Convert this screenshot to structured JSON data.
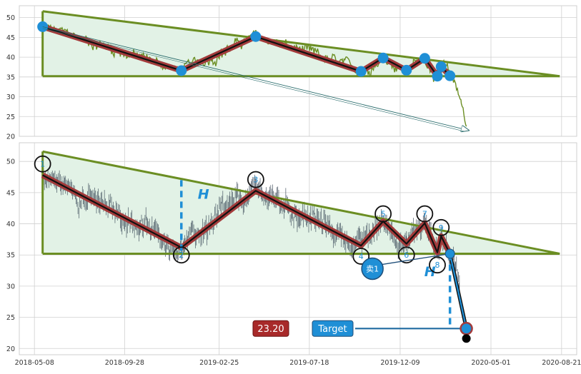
{
  "chart_data": [
    {
      "panel": "top",
      "type": "line",
      "title": "",
      "xlabel": "",
      "ylabel": "",
      "ylim": [
        20,
        53
      ],
      "yticks": [
        20,
        25,
        30,
        35,
        40,
        45,
        50
      ],
      "xlim": [
        "2018-04-14",
        "2020-09-14"
      ],
      "grid": true,
      "series": [
        {
          "color": "#6b8e23",
          "style": "price-line"
        },
        {
          "color": "#a33b3b",
          "style": "zigzag-thick",
          "points": [
            [
              "2018-05-21",
              47.7
            ],
            [
              "2018-12-27",
              36.6
            ],
            [
              "2019-04-24",
              45.2
            ],
            [
              "2019-10-08",
              36.4
            ],
            [
              "2019-11-12",
              39.8
            ],
            [
              "2019-12-19",
              36.7
            ],
            [
              "2020-01-17",
              39.7
            ],
            [
              "2020-02-06",
              35.2
            ],
            [
              "2020-02-12",
              37.6
            ],
            [
              "2020-02-26",
              35.3
            ]
          ]
        }
      ],
      "pattern": {
        "upper_line": [
          [
            "2018-05-21",
            51.6
          ],
          [
            "2020-08-18",
            35.2
          ]
        ],
        "lower_line": [
          [
            "2018-05-21",
            35.2
          ],
          [
            "2020-08-18",
            35.2
          ]
        ],
        "left_edge": [
          [
            "2018-05-21",
            51.6
          ],
          [
            "2018-05-21",
            35.2
          ]
        ]
      },
      "arrow": {
        "from": [
          "2018-05-21",
          47.7
        ],
        "to": [
          "2020-03-27",
          21.5
        ]
      }
    },
    {
      "panel": "bottom",
      "type": "line",
      "title": "",
      "xlabel": "",
      "ylabel": "",
      "ylim": [
        19,
        53
      ],
      "yticks": [
        20,
        25,
        30,
        35,
        40,
        45,
        50
      ],
      "xlim": [
        "2018-04-14",
        "2020-09-14"
      ],
      "xtick_labels": [
        "2018-05-08",
        "2018-09-28",
        "2019-02-25",
        "2019-07-18",
        "2019-12-09",
        "2020-05-01",
        "2020-08-21"
      ],
      "grid": true,
      "series": [
        {
          "color": "#2f3e4e",
          "style": "ohlc-bars"
        },
        {
          "color": "#a33b3b",
          "style": "zigzag-thick",
          "points": [
            [
              "2018-05-21",
              47.8
            ],
            [
              "2018-12-27",
              36.2
            ],
            [
              "2019-04-24",
              45.3
            ],
            [
              "2019-10-08",
              36.5
            ],
            [
              "2019-11-12",
              40.4
            ],
            [
              "2019-12-19",
              36.8
            ],
            [
              "2020-01-17",
              40.1
            ],
            [
              "2020-02-06",
              35.4
            ],
            [
              "2020-02-12",
              38.0
            ],
            [
              "2020-02-26",
              35.2
            ]
          ]
        },
        {
          "color": "#1f4e79",
          "style": "breakdown-line",
          "points": [
            [
              "2020-02-26",
              35.2
            ],
            [
              "2020-03-23",
              23.2
            ]
          ]
        }
      ],
      "pattern": {
        "upper_line": [
          [
            "2018-05-21",
            51.6
          ],
          [
            "2020-08-18",
            35.2
          ]
        ],
        "lower_line": [
          [
            "2018-05-21",
            35.2
          ],
          [
            "2020-08-18",
            35.2
          ]
        ],
        "left_edge": [
          [
            "2018-05-21",
            51.6
          ],
          [
            "2018-05-21",
            35.2
          ]
        ]
      },
      "pivot_labels": [
        {
          "label": "1",
          "date": "2018-05-21",
          "value": 49.6
        },
        {
          "label": "2",
          "date": "2018-12-27",
          "value": 35.0
        },
        {
          "label": "3",
          "date": "2019-04-24",
          "value": 47.1
        },
        {
          "label": "4",
          "date": "2019-10-08",
          "value": 34.8
        },
        {
          "label": "5",
          "date": "2019-11-12",
          "value": 41.6
        },
        {
          "label": "6",
          "date": "2019-12-19",
          "value": 35.0
        },
        {
          "label": "7",
          "date": "2020-01-17",
          "value": 41.6
        },
        {
          "label": "8",
          "date": "2020-02-06",
          "value": 33.4
        },
        {
          "label": "9",
          "date": "2020-02-12",
          "value": 39.4
        }
      ],
      "height_markers": [
        {
          "label": "H",
          "date": "2018-12-27",
          "from": 47.0,
          "to": 35.2,
          "label_value": 44.0
        },
        {
          "label": "H",
          "date": "2020-02-26",
          "from": 35.2,
          "to": 23.2,
          "label_value": 31.6
        }
      ],
      "sell_signal": {
        "label": "卖1",
        "date": "2019-10-26",
        "value": 32.8,
        "target_point": [
          "2020-02-26",
          35.2
        ]
      },
      "target": {
        "label": "Target",
        "value_label": "23.20",
        "value": 23.2,
        "date": "2020-03-23"
      },
      "final_point": {
        "date": "2020-03-23",
        "value": 21.6
      }
    }
  ],
  "colors": {
    "pattern_fill": "#e2f2e6",
    "pattern_line": "#6b8e23",
    "zigzag_outer": "#a33b3b",
    "zigzag_inner": "#111111",
    "marker_blue": "#1f8fd6",
    "target_box": "#1f8fd6",
    "value_box": "#a82a2a",
    "grid": "#d0d0d0"
  }
}
